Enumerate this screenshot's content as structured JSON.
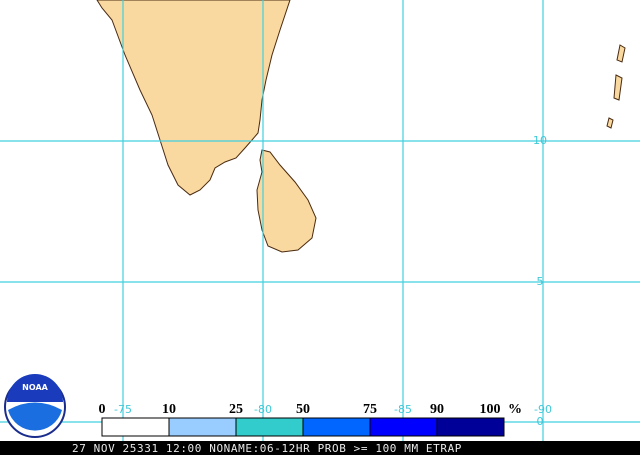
{
  "map": {
    "grid_labels": {
      "latitude": [
        10,
        5,
        0
      ],
      "longitude": [
        -75,
        -80,
        -85,
        -90
      ]
    },
    "legend": {
      "labels": [
        0,
        10,
        25,
        50,
        75,
        90,
        100
      ],
      "unit": "%",
      "colors": [
        "#ffffff",
        "#99ccff",
        "#33cccc",
        "#0066ff",
        "#0000ff",
        "#000099"
      ]
    },
    "logo": "NOAA",
    "caption": "27 NOV 25331 12:00 NONAME:06-12HR PROB >= 100 MM ETRAP"
  }
}
